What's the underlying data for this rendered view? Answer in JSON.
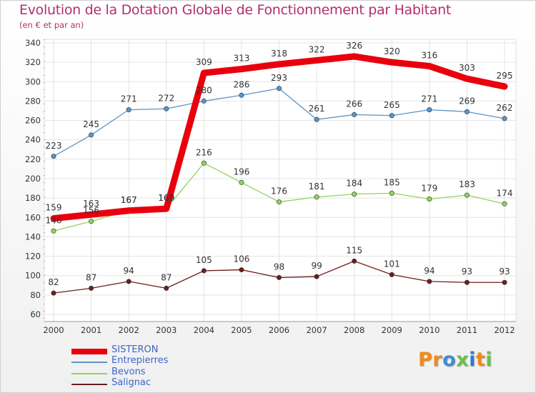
{
  "header": {
    "title": "Evolution de la Dotation Globale de Fonctionnement par Habitant",
    "subtitle": "(en € et par an)"
  },
  "logo": {
    "letters": [
      "P",
      "r",
      "o",
      "x",
      "i",
      "t",
      "i"
    ],
    "colors": [
      "#f28a1a",
      "#f28a1a",
      "#3b8fd6",
      "#6cc04a",
      "#2a7fd0",
      "#f28a1a",
      "#6cc04a"
    ],
    "text": "Proxiti"
  },
  "chart_data": {
    "type": "line",
    "x": [
      "2000",
      "2001",
      "2002",
      "2003",
      "2004",
      "2005",
      "2006",
      "2007",
      "2008",
      "2009",
      "2010",
      "2011",
      "2012"
    ],
    "ylim": [
      60,
      340
    ],
    "yticks": [
      60,
      80,
      100,
      120,
      140,
      160,
      180,
      200,
      220,
      240,
      260,
      280,
      300,
      320,
      340
    ],
    "grid": true,
    "legend_position": "bottom-left",
    "series": [
      {
        "name": "SISTERON",
        "color": "#e8000d",
        "values": [
          159,
          163,
          167,
          169,
          309,
          313,
          318,
          322,
          326,
          320,
          316,
          303,
          295
        ]
      },
      {
        "name": "Entrepierres",
        "color": "#5a94c8",
        "values": [
          223,
          245,
          271,
          272,
          280,
          286,
          293,
          261,
          266,
          265,
          271,
          269,
          262
        ]
      },
      {
        "name": "Bevons",
        "color": "#8fd45a",
        "values": [
          146,
          156,
          167,
          169,
          216,
          196,
          176,
          181,
          184,
          185,
          179,
          183,
          174
        ]
      },
      {
        "name": "Salignac",
        "color": "#6b1e1e",
        "values": [
          82,
          87,
          94,
          87,
          105,
          106,
          98,
          99,
          115,
          101,
          94,
          93,
          93
        ]
      }
    ]
  }
}
